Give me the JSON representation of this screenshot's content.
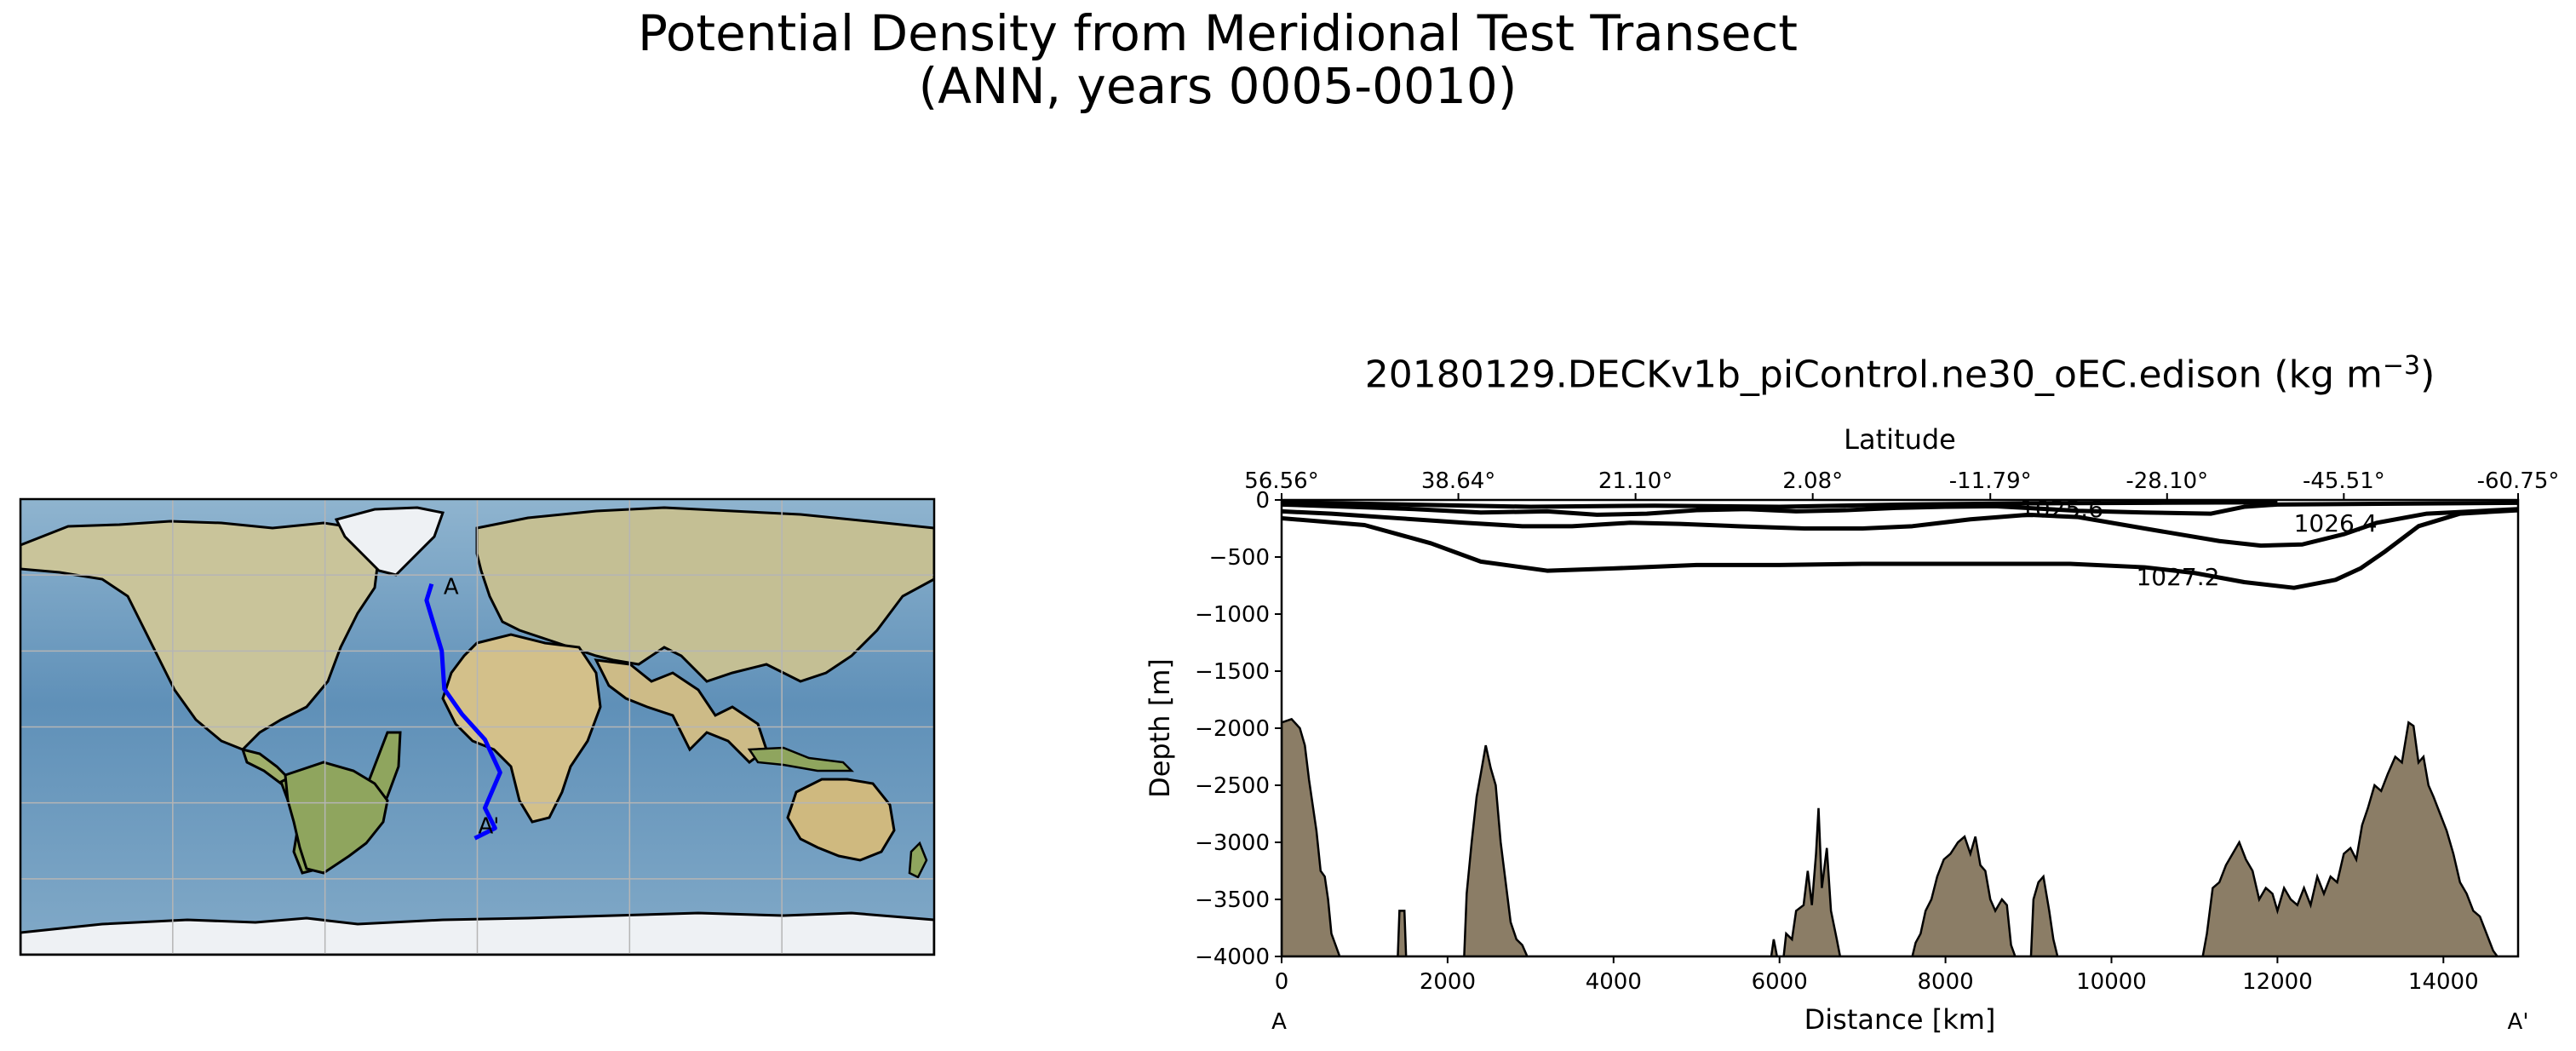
{
  "figure": {
    "title_line1": "Potential Density from Meridional Test Transect",
    "title_line2": "(ANN, years 0005-0010)"
  },
  "map": {
    "start_label": "A",
    "end_label": "A'",
    "transect_color": "#0000ff",
    "transect_track": [
      [
        -18,
        56.5
      ],
      [
        -20,
        50
      ],
      [
        -17,
        40
      ],
      [
        -14,
        30
      ],
      [
        -13,
        15
      ],
      [
        -6,
        5
      ],
      [
        3,
        -5
      ],
      [
        9,
        -18
      ],
      [
        3,
        -32
      ],
      [
        7,
        -40
      ],
      [
        -1,
        -44
      ]
    ]
  },
  "section": {
    "title_main": "20180129.DECKv1b_piControl.ne30_oEC.edison (kg m",
    "title_exp": "−3",
    "title_close": ")",
    "xlabel": "Distance [km]",
    "ylabel": "Depth [m]",
    "top_xlabel": "Latitude",
    "left_end_label": "A",
    "right_end_label": "A'",
    "bathymetry_color": "#8b7d66"
  },
  "chart_data": {
    "type": "contour",
    "title": "20180129.DECKv1b_piControl.ne30_oEC.edison (kg m^-3)",
    "xlabel": "Distance [km]",
    "ylabel": "Depth [m]",
    "xlim": [
      0,
      14900
    ],
    "ylim": [
      -4000,
      0
    ],
    "x_ticks": [
      0,
      2000,
      4000,
      6000,
      8000,
      10000,
      12000,
      14000
    ],
    "y_ticks": [
      0,
      -500,
      -1000,
      -1500,
      -2000,
      -2500,
      -3000,
      -3500,
      -4000
    ],
    "top_axis": {
      "label": "Latitude",
      "ticks": [
        {
          "x": 0,
          "label": "56.56°"
        },
        {
          "x": 2130,
          "label": "38.64°"
        },
        {
          "x": 4265,
          "label": "21.10°"
        },
        {
          "x": 6400,
          "label": "2.08°"
        },
        {
          "x": 8540,
          "label": "-11.79°"
        },
        {
          "x": 10670,
          "label": "-28.10°"
        },
        {
          "x": 12800,
          "label": "-45.51°"
        },
        {
          "x": 14900,
          "label": "-60.75°"
        }
      ]
    },
    "contours": [
      {
        "level": "1027.2",
        "label_at": [
          10800,
          -670
        ],
        "points": [
          [
            0,
            -160
          ],
          [
            1000,
            -220
          ],
          [
            1800,
            -380
          ],
          [
            2400,
            -540
          ],
          [
            3200,
            -620
          ],
          [
            4000,
            -600
          ],
          [
            5000,
            -570
          ],
          [
            6000,
            -570
          ],
          [
            7000,
            -560
          ],
          [
            8500,
            -560
          ],
          [
            9500,
            -560
          ],
          [
            10400,
            -590
          ],
          [
            11000,
            -640
          ],
          [
            11600,
            -720
          ],
          [
            12200,
            -770
          ],
          [
            12700,
            -700
          ],
          [
            13000,
            -600
          ],
          [
            13300,
            -450
          ],
          [
            13700,
            -230
          ],
          [
            14200,
            -120
          ],
          [
            14900,
            -90
          ]
        ]
      },
      {
        "level": "1026.4",
        "label_at": [
          12700,
          -200
        ],
        "points": [
          [
            0,
            -100
          ],
          [
            600,
            -120
          ],
          [
            1400,
            -160
          ],
          [
            2200,
            -200
          ],
          [
            2900,
            -230
          ],
          [
            3500,
            -230
          ],
          [
            4200,
            -200
          ],
          [
            4800,
            -210
          ],
          [
            5500,
            -230
          ],
          [
            6300,
            -250
          ],
          [
            7000,
            -250
          ],
          [
            7600,
            -230
          ],
          [
            8300,
            -170
          ],
          [
            9000,
            -130
          ],
          [
            9600,
            -150
          ],
          [
            10400,
            -250
          ],
          [
            11300,
            -360
          ],
          [
            11800,
            -400
          ],
          [
            12300,
            -390
          ],
          [
            12800,
            -300
          ],
          [
            13200,
            -200
          ],
          [
            13800,
            -120
          ],
          [
            14900,
            -80
          ]
        ]
      },
      {
        "level": "1025.6",
        "label_at": [
          9400,
          -75
        ],
        "points": [
          [
            0,
            -40
          ],
          [
            800,
            -60
          ],
          [
            1600,
            -80
          ],
          [
            2400,
            -110
          ],
          [
            3200,
            -100
          ],
          [
            3800,
            -130
          ],
          [
            4400,
            -120
          ],
          [
            5000,
            -90
          ],
          [
            5600,
            -80
          ],
          [
            6200,
            -100
          ],
          [
            6800,
            -90
          ],
          [
            7400,
            -70
          ],
          [
            8000,
            -60
          ],
          [
            8600,
            -55
          ],
          [
            9600,
            -95
          ],
          [
            10400,
            -110
          ],
          [
            11200,
            -120
          ],
          [
            11600,
            -60
          ],
          [
            12000,
            -40
          ],
          [
            14900,
            -25
          ]
        ]
      },
      {
        "level": "",
        "label_at": null,
        "points": [
          [
            0,
            -20
          ],
          [
            1500,
            -40
          ],
          [
            3000,
            -60
          ],
          [
            4500,
            -50
          ],
          [
            6000,
            -60
          ],
          [
            7500,
            -40
          ],
          [
            9000,
            -30
          ],
          [
            10500,
            -25
          ],
          [
            12000,
            -20
          ]
        ]
      }
    ],
    "bathymetry": [
      [
        0,
        -1950
      ],
      [
        120,
        -1920
      ],
      [
        220,
        -2000
      ],
      [
        280,
        -2150
      ],
      [
        330,
        -2450
      ],
      [
        380,
        -2700
      ],
      [
        420,
        -2900
      ],
      [
        470,
        -3250
      ],
      [
        520,
        -3300
      ],
      [
        560,
        -3500
      ],
      [
        600,
        -3800
      ],
      [
        650,
        -3900
      ],
      [
        700,
        -4000
      ],
      [
        1400,
        -4000
      ],
      [
        1420,
        -3600
      ],
      [
        1480,
        -3600
      ],
      [
        1500,
        -4000
      ],
      [
        2200,
        -4000
      ],
      [
        2230,
        -3450
      ],
      [
        2290,
        -3000
      ],
      [
        2350,
        -2600
      ],
      [
        2400,
        -2400
      ],
      [
        2460,
        -2150
      ],
      [
        2520,
        -2350
      ],
      [
        2580,
        -2500
      ],
      [
        2640,
        -3000
      ],
      [
        2700,
        -3350
      ],
      [
        2760,
        -3700
      ],
      [
        2830,
        -3850
      ],
      [
        2900,
        -3900
      ],
      [
        2960,
        -4000
      ],
      [
        5900,
        -4000
      ],
      [
        5930,
        -3850
      ],
      [
        5970,
        -4000
      ],
      [
        6050,
        -4000
      ],
      [
        6080,
        -3800
      ],
      [
        6150,
        -3850
      ],
      [
        6200,
        -3600
      ],
      [
        6290,
        -3550
      ],
      [
        6340,
        -3250
      ],
      [
        6390,
        -3550
      ],
      [
        6440,
        -3100
      ],
      [
        6470,
        -2700
      ],
      [
        6510,
        -3400
      ],
      [
        6570,
        -3050
      ],
      [
        6620,
        -3600
      ],
      [
        6690,
        -3850
      ],
      [
        6730,
        -4000
      ],
      [
        7600,
        -4000
      ],
      [
        7640,
        -3880
      ],
      [
        7700,
        -3800
      ],
      [
        7760,
        -3600
      ],
      [
        7830,
        -3500
      ],
      [
        7900,
        -3300
      ],
      [
        7980,
        -3150
      ],
      [
        8060,
        -3100
      ],
      [
        8150,
        -3000
      ],
      [
        8230,
        -2950
      ],
      [
        8300,
        -3100
      ],
      [
        8360,
        -2950
      ],
      [
        8420,
        -3200
      ],
      [
        8480,
        -3250
      ],
      [
        8540,
        -3500
      ],
      [
        8600,
        -3600
      ],
      [
        8680,
        -3500
      ],
      [
        8740,
        -3550
      ],
      [
        8790,
        -3900
      ],
      [
        8840,
        -4000
      ],
      [
        9030,
        -4000
      ],
      [
        9060,
        -3500
      ],
      [
        9120,
        -3350
      ],
      [
        9180,
        -3300
      ],
      [
        9250,
        -3600
      ],
      [
        9300,
        -3850
      ],
      [
        9350,
        -4000
      ],
      [
        11100,
        -4000
      ],
      [
        11150,
        -3800
      ],
      [
        11220,
        -3400
      ],
      [
        11300,
        -3350
      ],
      [
        11380,
        -3200
      ],
      [
        11460,
        -3100
      ],
      [
        11540,
        -3000
      ],
      [
        11620,
        -3150
      ],
      [
        11700,
        -3250
      ],
      [
        11780,
        -3500
      ],
      [
        11860,
        -3400
      ],
      [
        11940,
        -3450
      ],
      [
        12000,
        -3600
      ],
      [
        12080,
        -3400
      ],
      [
        12160,
        -3500
      ],
      [
        12240,
        -3550
      ],
      [
        12320,
        -3400
      ],
      [
        12400,
        -3550
      ],
      [
        12480,
        -3300
      ],
      [
        12560,
        -3450
      ],
      [
        12640,
        -3300
      ],
      [
        12720,
        -3350
      ],
      [
        12800,
        -3100
      ],
      [
        12880,
        -3050
      ],
      [
        12950,
        -3150
      ],
      [
        13020,
        -2850
      ],
      [
        13090,
        -2700
      ],
      [
        13170,
        -2500
      ],
      [
        13250,
        -2550
      ],
      [
        13330,
        -2400
      ],
      [
        13420,
        -2250
      ],
      [
        13500,
        -2300
      ],
      [
        13580,
        -1950
      ],
      [
        13640,
        -1980
      ],
      [
        13700,
        -2300
      ],
      [
        13760,
        -2250
      ],
      [
        13820,
        -2500
      ],
      [
        13880,
        -2600
      ],
      [
        13960,
        -2750
      ],
      [
        14040,
        -2900
      ],
      [
        14120,
        -3100
      ],
      [
        14200,
        -3350
      ],
      [
        14280,
        -3450
      ],
      [
        14360,
        -3600
      ],
      [
        14440,
        -3650
      ],
      [
        14520,
        -3800
      ],
      [
        14600,
        -3950
      ],
      [
        14650,
        -4000
      ]
    ]
  }
}
